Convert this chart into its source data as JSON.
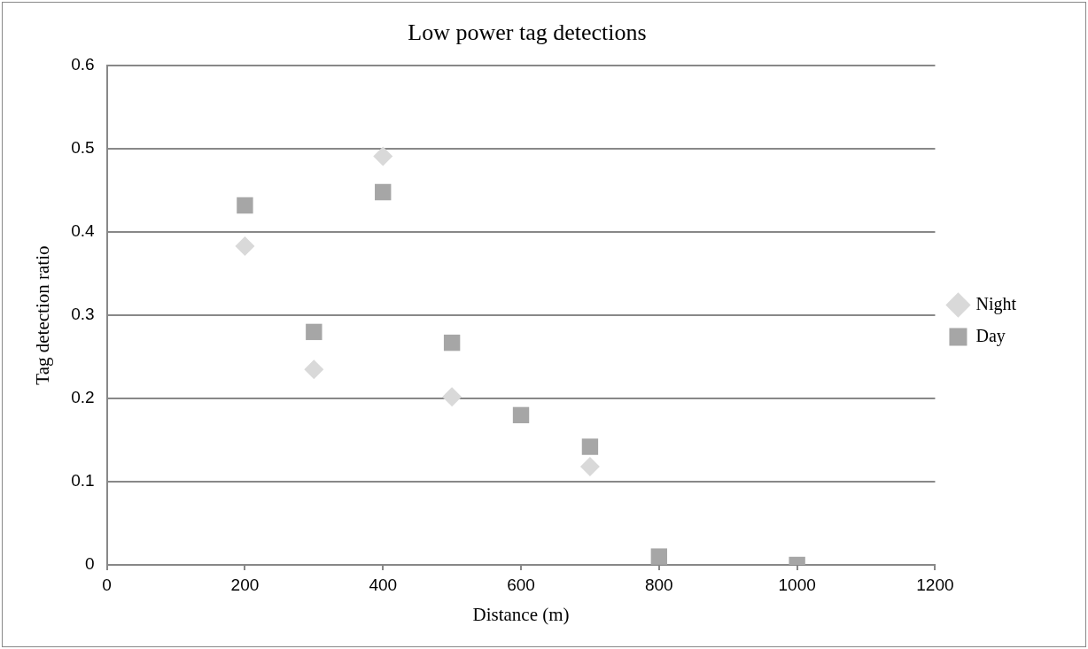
{
  "chart_data": {
    "type": "scatter",
    "title": "Low power tag detections",
    "xlabel": "Distance (m)",
    "ylabel": "Tag detection ratio",
    "xlim": [
      0,
      1200
    ],
    "xticks": [
      0,
      200,
      400,
      600,
      800,
      1000,
      1200
    ],
    "ylim": [
      0,
      0.6
    ],
    "yticks": [
      0,
      0.1,
      0.2,
      0.3,
      0.4,
      0.5,
      0.6
    ],
    "grid": "y",
    "legend": "right",
    "series": [
      {
        "name": "Night",
        "color": "#d9d9d9",
        "marker": "diamond",
        "x": [
          200,
          300,
          400,
          500,
          700
        ],
        "values": [
          0.383,
          0.235,
          0.491,
          0.202,
          0.118
        ]
      },
      {
        "name": "Day",
        "color": "#a6a6a6",
        "marker": "square",
        "x": [
          200,
          300,
          400,
          500,
          600,
          700,
          800,
          1000
        ],
        "values": [
          0.432,
          0.28,
          0.448,
          0.267,
          0.18,
          0.142,
          0.01,
          0
        ]
      }
    ]
  }
}
